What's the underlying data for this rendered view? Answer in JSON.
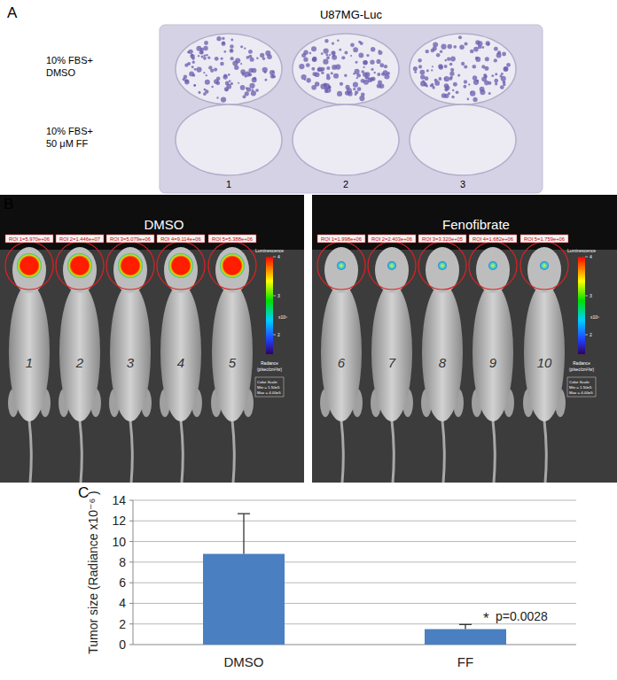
{
  "panel_a": {
    "label": "A",
    "title": "U87MG-Luc",
    "rows": [
      [
        "10% FBS+",
        "DMSO"
      ],
      [
        "10% FBS+",
        "50 μM FF"
      ]
    ],
    "columns": [
      "1",
      "2",
      "3"
    ]
  },
  "panel_b": {
    "label": "B",
    "images": [
      {
        "title": "DMSO",
        "mice": [
          "1",
          "2",
          "3",
          "4",
          "5"
        ],
        "rois": [
          "ROI 1=5.970e+06",
          "ROI 2=1.446e+07",
          "ROI 3=5.079e+06",
          "ROI 4=9.114e+06",
          "ROI 5=5.388e+06"
        ]
      },
      {
        "title": "Fenofibrate",
        "mice": [
          "6",
          "7",
          "8",
          "9",
          "10"
        ],
        "rois": [
          "ROI 1=1.998e+06",
          "ROI 2=2.403e+06",
          "ROI 3=3.320e+05",
          "ROI 4=1.682e+06",
          "ROI 5=1.759e+06"
        ]
      }
    ],
    "color_bar": {
      "title": "Luminescence",
      "range": [
        1.5,
        4
      ],
      "ticks": [
        2,
        3,
        4
      ],
      "scale_label": "x10⁵",
      "unit_label": [
        "Radiance",
        "(p/sec/cm²/sr)"
      ],
      "scale_box": [
        "Color Scale",
        "Min = 1.50e5",
        "Max = 4.00e5"
      ]
    }
  },
  "chart_data": {
    "type": "bar",
    "panel_label": "C",
    "y_label": "Tumor size (Radiance x10⁻⁶ )",
    "categories": [
      "DMSO",
      "FF"
    ],
    "values": [
      8.8,
      1.5
    ],
    "errors": [
      3.9,
      0.45
    ],
    "color": "#4a7fc1",
    "ylim": [
      0,
      14
    ],
    "yticks": [
      0,
      2,
      4,
      6,
      8,
      10,
      12,
      14
    ],
    "grid": true,
    "annotations": [
      "*",
      "p=0.0028"
    ]
  }
}
